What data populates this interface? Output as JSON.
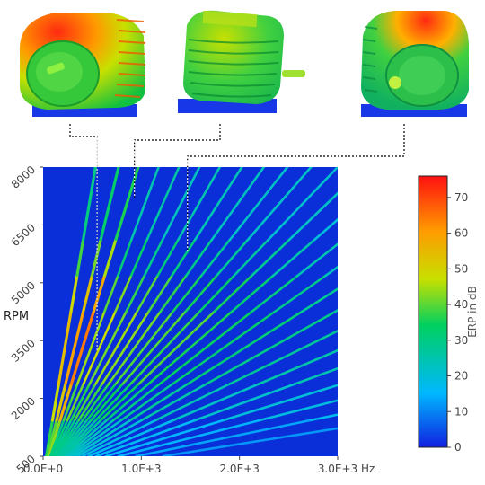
{
  "chart_data": {
    "type": "heatmap",
    "title": "",
    "xlabel": "Hz",
    "ylabel": "RPM",
    "xlim": [
      0,
      3000
    ],
    "ylim": [
      500,
      8000
    ],
    "x_ticks": [
      {
        "value": 0,
        "label": "0.0E+0"
      },
      {
        "value": 1000,
        "label": "1.0E+3"
      },
      {
        "value": 2000,
        "label": "2.0E+3"
      },
      {
        "value": 3000,
        "label": "3.0E+3"
      }
    ],
    "x_unit": "Hz",
    "y_ticks": [
      {
        "value": 500,
        "label": "500"
      },
      {
        "value": 2000,
        "label": "2000"
      },
      {
        "value": 3500,
        "label": "3500"
      },
      {
        "value": 5000,
        "label": "5000"
      },
      {
        "value": 6500,
        "label": "6500"
      },
      {
        "value": 8000,
        "label": "8000"
      }
    ],
    "background_color": "#0a2fd8",
    "orders": [
      {
        "slope_hz_per_1000rpm": 66.7,
        "peak_db": 55
      },
      {
        "slope_hz_per_1000rpm": 96,
        "peak_db": 60
      },
      {
        "slope_hz_per_1000rpm": 121,
        "peak_db": 65
      },
      {
        "slope_hz_per_1000rpm": 147,
        "peak_db": 45
      },
      {
        "slope_hz_per_1000rpm": 173,
        "peak_db": 48
      },
      {
        "slope_hz_per_1000rpm": 199,
        "peak_db": 42
      },
      {
        "slope_hz_per_1000rpm": 225,
        "peak_db": 45
      },
      {
        "slope_hz_per_1000rpm": 253,
        "peak_db": 44
      },
      {
        "slope_hz_per_1000rpm": 281,
        "peak_db": 42
      },
      {
        "slope_hz_per_1000rpm": 311,
        "peak_db": 40
      },
      {
        "slope_hz_per_1000rpm": 341,
        "peak_db": 40
      },
      {
        "slope_hz_per_1000rpm": 375,
        "peak_db": 38
      },
      {
        "slope_hz_per_1000rpm": 410,
        "peak_db": 40
      },
      {
        "slope_hz_per_1000rpm": 452,
        "peak_db": 36
      },
      {
        "slope_hz_per_1000rpm": 500,
        "peak_db": 35
      },
      {
        "slope_hz_per_1000rpm": 555,
        "peak_db": 33
      },
      {
        "slope_hz_per_1000rpm": 620,
        "peak_db": 32
      },
      {
        "slope_hz_per_1000rpm": 700,
        "peak_db": 30
      },
      {
        "slope_hz_per_1000rpm": 800,
        "peak_db": 28
      },
      {
        "slope_hz_per_1000rpm": 925,
        "peak_db": 26
      },
      {
        "slope_hz_per_1000rpm": 1080,
        "peak_db": 25
      },
      {
        "slope_hz_per_1000rpm": 1280,
        "peak_db": 23
      },
      {
        "slope_hz_per_1000rpm": 1540,
        "peak_db": 22
      },
      {
        "slope_hz_per_1000rpm": 1900,
        "peak_db": 20
      },
      {
        "slope_hz_per_1000rpm": 2450,
        "peak_db": 18
      }
    ],
    "colorbar": {
      "label": "ERP in dB",
      "min": 0,
      "max": 76,
      "ticks": [
        0,
        10,
        20,
        30,
        40,
        50,
        60,
        70
      ]
    },
    "callouts": [
      {
        "name": "front view",
        "freq_hz": 550,
        "rpm": 3200
      },
      {
        "name": "side view",
        "freq_hz": 930,
        "rpm": 7200
      },
      {
        "name": "rear view",
        "freq_hz": 1470,
        "rpm": 5800
      }
    ]
  }
}
